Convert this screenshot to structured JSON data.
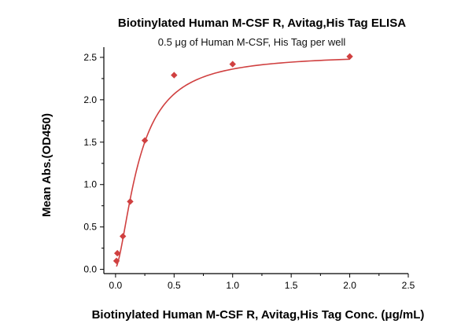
{
  "chart_data": {
    "type": "scatter",
    "title": "Biotinylated Human M-CSF R, Avitag,His Tag ELISA",
    "subtitle": "0.5 μg of Human M-CSF, His Tag per well",
    "xlabel": "Biotinylated Human M-CSF R, Avitag,His Tag Conc. (μg/mL)",
    "ylabel": "Mean Abs.(OD450)",
    "xlim": [
      -0.1,
      2.5
    ],
    "ylim": [
      -0.05,
      2.62
    ],
    "xticks": [
      0.0,
      0.5,
      1.0,
      1.5,
      2.0,
      2.5
    ],
    "xtick_labels": [
      "0.0",
      "0.5",
      "1.0",
      "1.5",
      "2.0",
      "2.5"
    ],
    "yticks": [
      0.0,
      0.5,
      1.0,
      1.5,
      2.0,
      2.5
    ],
    "ytick_labels": [
      "0.0",
      "0.5",
      "1.0",
      "1.5",
      "2.0",
      "2.5"
    ],
    "grid": false,
    "color": "#d04040",
    "series": [
      {
        "x": [
          0.0078,
          0.0156,
          0.0625,
          0.125,
          0.25,
          0.5,
          1.0,
          2.0
        ],
        "y": [
          0.1,
          0.19,
          0.39,
          0.8,
          1.52,
          2.29,
          2.42,
          2.51
        ],
        "fit": "4PL"
      }
    ]
  }
}
